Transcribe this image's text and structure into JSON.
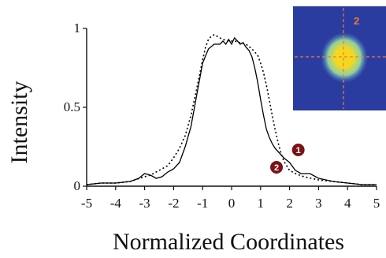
{
  "chart_data": {
    "type": "line",
    "xlabel": "Normalized Coordinates",
    "ylabel": "Intensity",
    "xlim": [
      -5,
      5
    ],
    "ylim": [
      0,
      1
    ],
    "x_ticks": [
      "-5",
      "-4",
      "-3",
      "-2",
      "-1",
      "0",
      "1",
      "2",
      "3",
      "4",
      "5"
    ],
    "y_ticks": [
      "0",
      "0.5",
      "1"
    ],
    "grid": false,
    "legend": "none",
    "series": [
      {
        "style": "solid",
        "color": "#000000",
        "points": [
          [
            -5,
            0.01
          ],
          [
            -4.5,
            0.02
          ],
          [
            -4,
            0.02
          ],
          [
            -3.5,
            0.03
          ],
          [
            -3.2,
            0.05
          ],
          [
            -3,
            0.08
          ],
          [
            -2.8,
            0.07
          ],
          [
            -2.6,
            0.05
          ],
          [
            -2.4,
            0.06
          ],
          [
            -2.2,
            0.09
          ],
          [
            -2,
            0.11
          ],
          [
            -1.8,
            0.15
          ],
          [
            -1.6,
            0.25
          ],
          [
            -1.4,
            0.38
          ],
          [
            -1.2,
            0.58
          ],
          [
            -1,
            0.78
          ],
          [
            -0.8,
            0.87
          ],
          [
            -0.6,
            0.9
          ],
          [
            -0.4,
            0.9
          ],
          [
            -0.3,
            0.92
          ],
          [
            -0.2,
            0.9
          ],
          [
            -0.1,
            0.93
          ],
          [
            0,
            0.9
          ],
          [
            0.1,
            0.94
          ],
          [
            0.2,
            0.92
          ],
          [
            0.3,
            0.9
          ],
          [
            0.4,
            0.91
          ],
          [
            0.5,
            0.88
          ],
          [
            0.6,
            0.86
          ],
          [
            0.7,
            0.82
          ],
          [
            0.8,
            0.75
          ],
          [
            0.9,
            0.66
          ],
          [
            1,
            0.55
          ],
          [
            1.1,
            0.45
          ],
          [
            1.2,
            0.36
          ],
          [
            1.3,
            0.31
          ],
          [
            1.4,
            0.27
          ],
          [
            1.5,
            0.24
          ],
          [
            1.6,
            0.22
          ],
          [
            1.7,
            0.2
          ],
          [
            1.8,
            0.18
          ],
          [
            2,
            0.15
          ],
          [
            2.2,
            0.1
          ],
          [
            2.4,
            0.08
          ],
          [
            2.7,
            0.08
          ],
          [
            3,
            0.05
          ],
          [
            3.5,
            0.03
          ],
          [
            4,
            0.02
          ],
          [
            4.5,
            0.01
          ],
          [
            5,
            0.01
          ]
        ]
      },
      {
        "style": "dotted",
        "color": "#000000",
        "points": [
          [
            -5,
            0.01
          ],
          [
            -4.5,
            0.02
          ],
          [
            -4,
            0.02
          ],
          [
            -3.5,
            0.03
          ],
          [
            -3,
            0.06
          ],
          [
            -2.8,
            0.07
          ],
          [
            -2.5,
            0.1
          ],
          [
            -2.2,
            0.13
          ],
          [
            -2,
            0.18
          ],
          [
            -1.8,
            0.24
          ],
          [
            -1.6,
            0.32
          ],
          [
            -1.4,
            0.45
          ],
          [
            -1.2,
            0.62
          ],
          [
            -1,
            0.8
          ],
          [
            -0.9,
            0.88
          ],
          [
            -0.8,
            0.93
          ],
          [
            -0.7,
            0.95
          ],
          [
            -0.6,
            0.96
          ],
          [
            -0.5,
            0.95
          ],
          [
            -0.3,
            0.93
          ],
          [
            -0.1,
            0.92
          ],
          [
            0.1,
            0.92
          ],
          [
            0.3,
            0.91
          ],
          [
            0.5,
            0.9
          ],
          [
            0.7,
            0.87
          ],
          [
            0.9,
            0.83
          ],
          [
            1,
            0.78
          ],
          [
            1.1,
            0.72
          ],
          [
            1.2,
            0.64
          ],
          [
            1.3,
            0.55
          ],
          [
            1.4,
            0.45
          ],
          [
            1.5,
            0.36
          ],
          [
            1.6,
            0.28
          ],
          [
            1.7,
            0.21
          ],
          [
            1.8,
            0.16
          ],
          [
            2,
            0.1
          ],
          [
            2.2,
            0.08
          ],
          [
            2.5,
            0.06
          ],
          [
            3,
            0.04
          ],
          [
            3.5,
            0.03
          ],
          [
            4,
            0.02
          ],
          [
            4.5,
            0.01
          ],
          [
            5,
            0.01
          ]
        ]
      }
    ],
    "annotations": [
      {
        "text": "1",
        "x": 2.3,
        "y": 0.23,
        "color": "#7a1218"
      },
      {
        "text": "2",
        "x": 1.55,
        "y": 0.12,
        "color": "#7a1218"
      }
    ],
    "inset": {
      "label": "2",
      "background_color": "#2a3ca0",
      "spot_colors": [
        "#f4d820",
        "#8fd0a0",
        "#3f7ad0"
      ],
      "crosshair_color": "#f07a3a"
    }
  }
}
